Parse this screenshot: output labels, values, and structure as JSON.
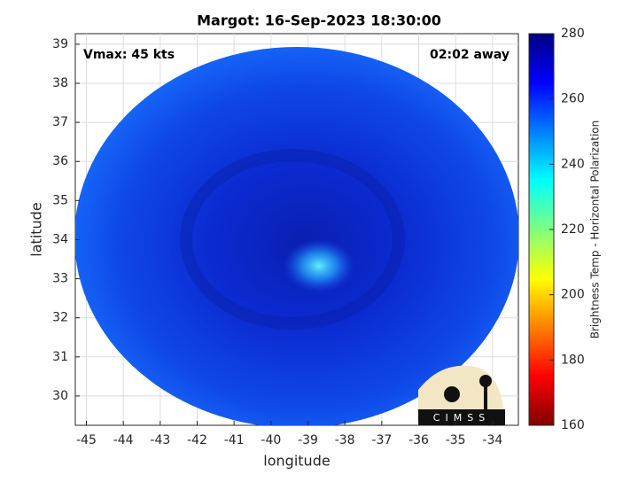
{
  "chart_data": {
    "type": "image",
    "title": "Margot: 16-Sep-2023 18:30:00",
    "xlabel": "longitude",
    "ylabel": "latitude",
    "annotations": [
      "Vmax: 45 kts",
      "02:02 away"
    ],
    "logo_text": "CIMSS",
    "xlim": [
      -45.3,
      -33.3
    ],
    "ylim": [
      29.25,
      39.27
    ],
    "xticks": [
      -45,
      -44,
      -43,
      -42,
      -41,
      -40,
      -39,
      -38,
      -37,
      -36,
      -35,
      -34
    ],
    "yticks": [
      30,
      31,
      32,
      33,
      34,
      35,
      36,
      37,
      38,
      39
    ],
    "grid": true,
    "colorbar": {
      "label": "Brightness Temp - Horizontal Polarization",
      "clim": [
        160,
        280
      ],
      "ticks": [
        160,
        180,
        200,
        220,
        240,
        260,
        280
      ],
      "colormap": "jet"
    }
  }
}
